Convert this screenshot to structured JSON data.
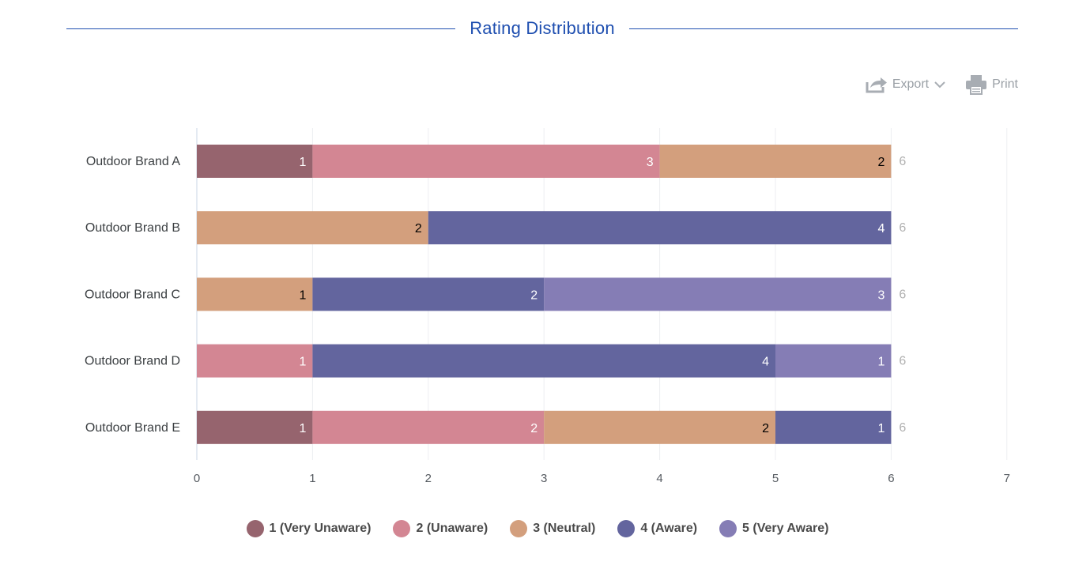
{
  "header": {
    "title": "Rating Distribution"
  },
  "toolbar": {
    "export_label": "Export",
    "export_icon": "share-arrow-icon",
    "export_chevron_icon": "chevron-down-icon",
    "print_label": "Print",
    "print_icon": "printer-icon"
  },
  "colors": {
    "title": "#1f4fb0",
    "toolbar": "#9aa0a6",
    "total_label": "#b0b0b0"
  },
  "chart_data": {
    "type": "bar",
    "orientation": "horizontal",
    "stacked": true,
    "categories": [
      "Outdoor Brand A",
      "Outdoor Brand B",
      "Outdoor Brand C",
      "Outdoor Brand D",
      "Outdoor Brand E"
    ],
    "series": [
      {
        "name": "1 (Very Unaware)",
        "color": "#96646e",
        "label_color": "#ffffff",
        "values": [
          1,
          0,
          0,
          0,
          1
        ]
      },
      {
        "name": "2 (Unaware)",
        "color": "#d38693",
        "label_color": "#ffffff",
        "values": [
          3,
          0,
          0,
          1,
          2
        ]
      },
      {
        "name": "3 (Neutral)",
        "color": "#d39f7d",
        "label_color": "#000000",
        "values": [
          2,
          2,
          1,
          0,
          2
        ]
      },
      {
        "name": "4 (Aware)",
        "color": "#63659e",
        "label_color": "#ffffff",
        "values": [
          0,
          4,
          2,
          4,
          1
        ]
      },
      {
        "name": "5 (Very Aware)",
        "color": "#857db5",
        "label_color": "#ffffff",
        "values": [
          0,
          0,
          3,
          1,
          0
        ]
      }
    ],
    "totals": [
      6,
      6,
      6,
      6,
      6
    ],
    "xlim": [
      0,
      7
    ],
    "xticks": [
      0,
      1,
      2,
      3,
      4,
      5,
      6,
      7
    ],
    "title": "Rating Distribution",
    "xlabel": "",
    "ylabel": "",
    "grid": true,
    "legend_position": "bottom"
  }
}
